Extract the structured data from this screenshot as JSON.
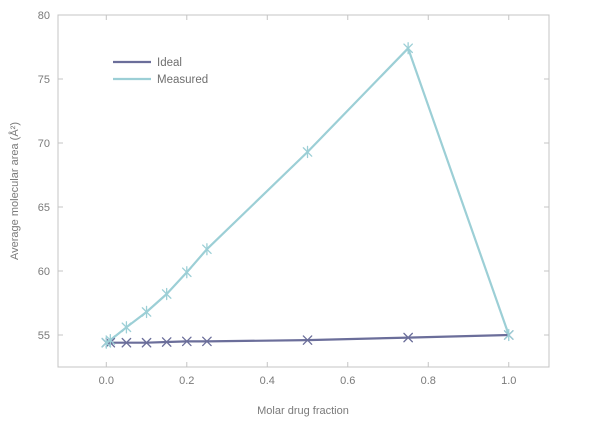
{
  "chart_data": {
    "type": "line",
    "title": "",
    "xlabel": "Molar drug fraction",
    "ylabel": "Average molecular area (Å²)",
    "xlim": [
      -0.12,
      1.1
    ],
    "ylim": [
      52.5,
      80
    ],
    "xticks": [
      0.0,
      0.2,
      0.4,
      0.6,
      0.8,
      1.0
    ],
    "xtick_labels": [
      "0.0",
      "0.2",
      "0.4",
      "0.6",
      "0.8",
      "1.0"
    ],
    "yticks": [
      55,
      60,
      65,
      70,
      75,
      80
    ],
    "ytick_labels": [
      "55",
      "60",
      "65",
      "70",
      "75",
      "80"
    ],
    "grid": false,
    "legend_position": "top-left",
    "series": [
      {
        "name": "Ideal",
        "color": "#6b6e9a",
        "marker": "x",
        "x": [
          0,
          0.01,
          0.05,
          0.1,
          0.15,
          0.2,
          0.25,
          0.5,
          0.75,
          1.0
        ],
        "y": [
          54.4,
          54.4,
          54.4,
          54.4,
          54.45,
          54.5,
          54.5,
          54.6,
          54.8,
          55.0
        ]
      },
      {
        "name": "Measured",
        "color": "#9ccfd6",
        "marker": "asterisk",
        "x": [
          0,
          0.01,
          0.05,
          0.1,
          0.15,
          0.2,
          0.25,
          0.5,
          0.75,
          1.0
        ],
        "y": [
          54.4,
          54.6,
          55.6,
          56.8,
          58.2,
          59.9,
          61.7,
          69.3,
          77.4,
          55.0
        ]
      }
    ]
  }
}
